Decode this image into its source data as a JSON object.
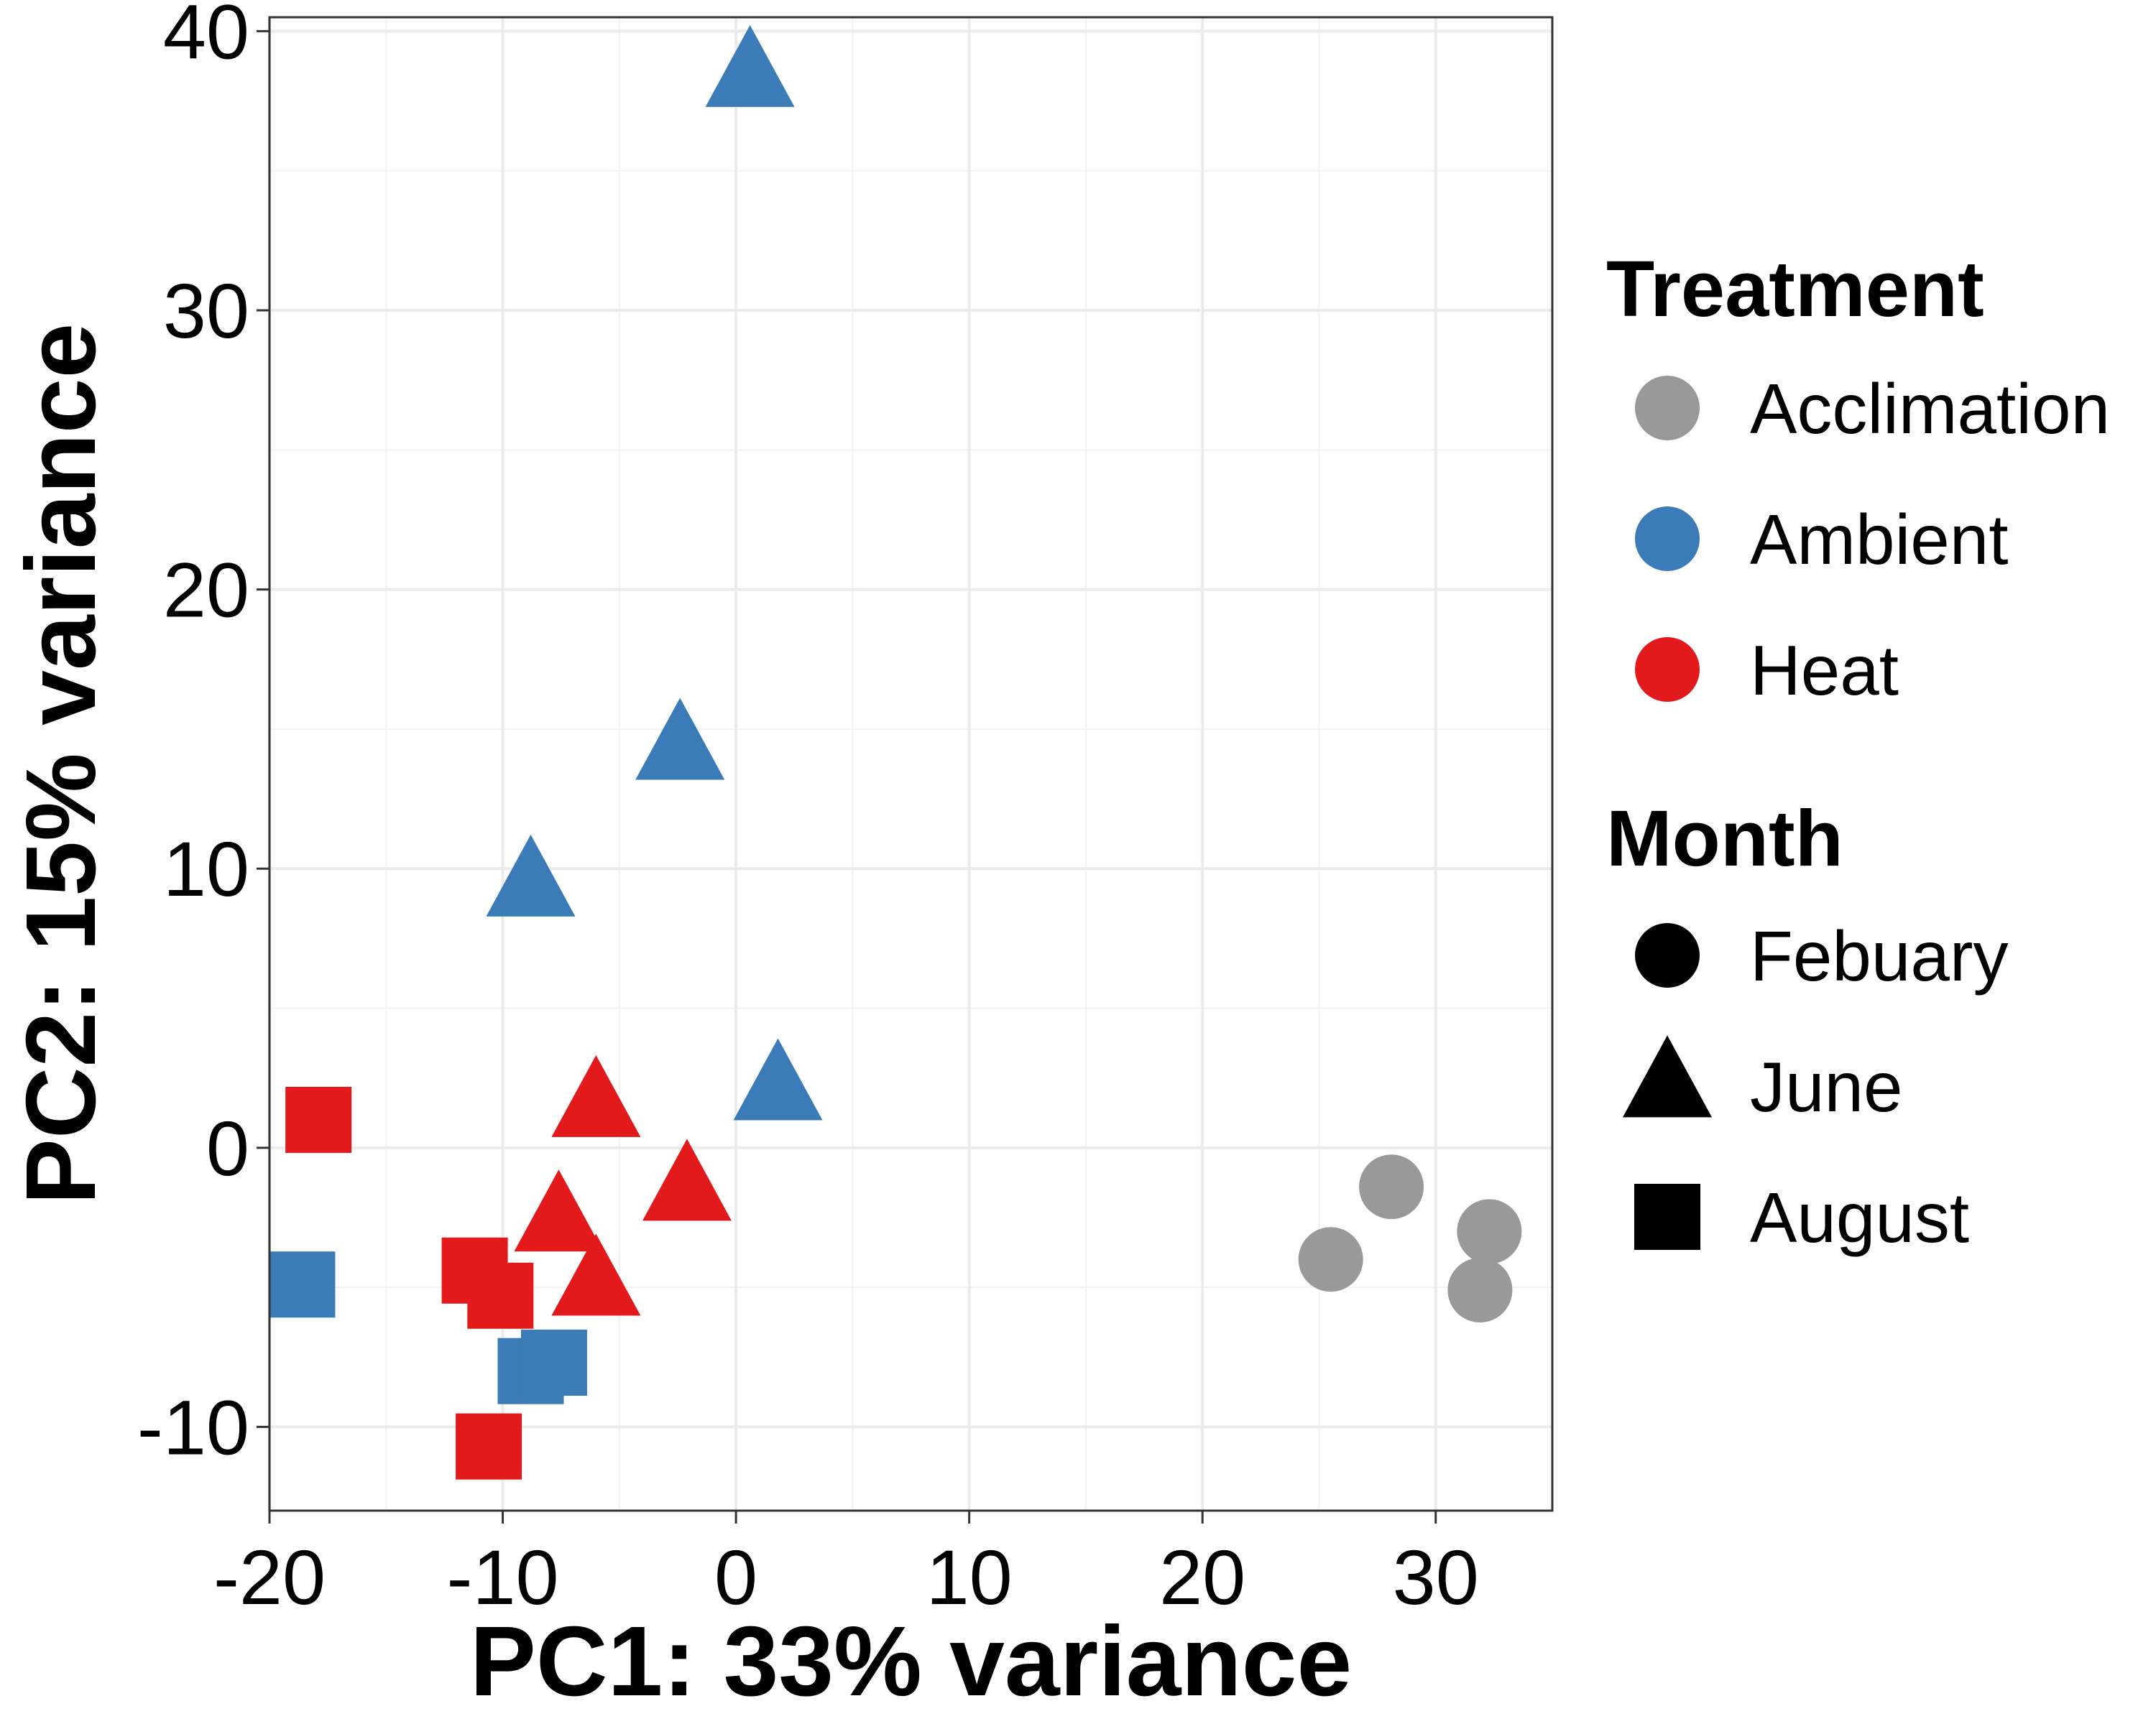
{
  "chart_data": {
    "type": "scatter",
    "xlabel": "PC1: 33% variance",
    "ylabel": "PC2: 15% variance",
    "xlim": [
      -20,
      35
    ],
    "ylim": [
      -13,
      40.5
    ],
    "x_ticks": [
      -20,
      -10,
      0,
      10,
      20,
      30
    ],
    "y_ticks": [
      -10,
      0,
      10,
      20,
      30,
      40
    ],
    "grid": true,
    "legend_position": "right",
    "treatment_legend": {
      "title": "Treatment",
      "items": [
        {
          "label": "Acclimation",
          "color": "#999999"
        },
        {
          "label": "Ambient",
          "color": "#3a7bb8"
        },
        {
          "label": "Heat",
          "color": "#e31a1c"
        }
      ]
    },
    "month_legend": {
      "title": "Month",
      "items": [
        {
          "label": "Febuary",
          "shape": "circle"
        },
        {
          "label": "June",
          "shape": "triangle"
        },
        {
          "label": "August",
          "shape": "square"
        }
      ]
    },
    "points": [
      {
        "x": 28.1,
        "y": -1.4,
        "treatment": "Acclimation",
        "month": "Febuary"
      },
      {
        "x": 25.5,
        "y": -4.0,
        "treatment": "Acclimation",
        "month": "Febuary"
      },
      {
        "x": 32.3,
        "y": -3.0,
        "treatment": "Acclimation",
        "month": "Febuary"
      },
      {
        "x": 31.9,
        "y": -5.1,
        "treatment": "Acclimation",
        "month": "Febuary"
      },
      {
        "x": 0.6,
        "y": 38.4,
        "treatment": "Ambient",
        "month": "June"
      },
      {
        "x": -2.4,
        "y": 14.3,
        "treatment": "Ambient",
        "month": "June"
      },
      {
        "x": -8.8,
        "y": 9.4,
        "treatment": "Ambient",
        "month": "June"
      },
      {
        "x": 1.8,
        "y": 2.1,
        "treatment": "Ambient",
        "month": "June"
      },
      {
        "x": -18.6,
        "y": -4.9,
        "treatment": "Ambient",
        "month": "August"
      },
      {
        "x": -8.8,
        "y": -8.0,
        "treatment": "Ambient",
        "month": "August"
      },
      {
        "x": -7.8,
        "y": -7.7,
        "treatment": "Ambient",
        "month": "August"
      },
      {
        "x": -6.0,
        "y": 1.5,
        "treatment": "Heat",
        "month": "June"
      },
      {
        "x": -2.1,
        "y": -1.5,
        "treatment": "Heat",
        "month": "June"
      },
      {
        "x": -7.6,
        "y": -2.6,
        "treatment": "Heat",
        "month": "June"
      },
      {
        "x": -6.0,
        "y": -4.9,
        "treatment": "Heat",
        "month": "June"
      },
      {
        "x": -17.9,
        "y": 1.0,
        "treatment": "Heat",
        "month": "August"
      },
      {
        "x": -11.2,
        "y": -4.4,
        "treatment": "Heat",
        "month": "August"
      },
      {
        "x": -10.1,
        "y": -5.3,
        "treatment": "Heat",
        "month": "August"
      },
      {
        "x": -10.6,
        "y": -10.7,
        "treatment": "Heat",
        "month": "August"
      }
    ]
  }
}
